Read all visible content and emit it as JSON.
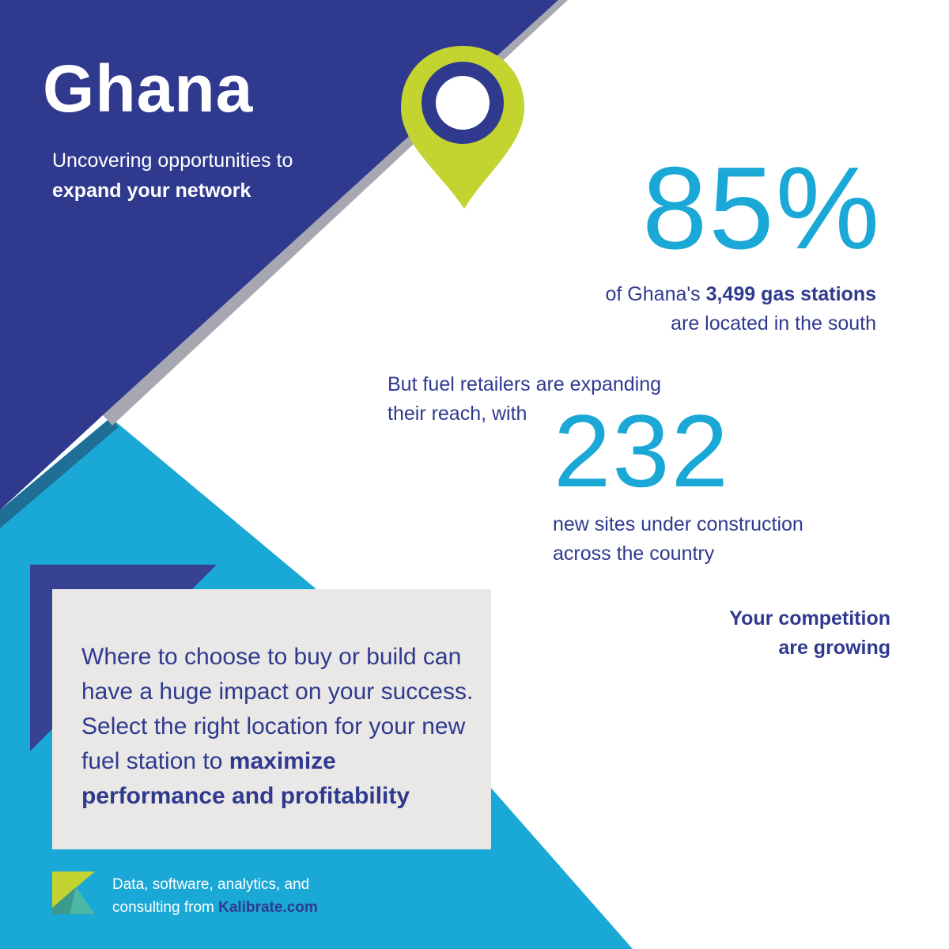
{
  "colors": {
    "navy": "#2f3a8f",
    "cyan": "#1aa8d6",
    "lime": "#c3d32f",
    "gray": "#a7a7b2",
    "card": "#e9e8e6"
  },
  "header": {
    "title": "Ghana",
    "subtitle_plain": "Uncovering opportunities to",
    "subtitle_bold": "expand your network"
  },
  "stat_south": {
    "value": "85%",
    "text_before": "of Ghana's",
    "text_bold": "3,499 gas stations",
    "text_after": "are located in the south"
  },
  "stat_new": {
    "intro_line1": "But fuel retailers are expanding",
    "intro_line2": "their reach, with",
    "value": "232",
    "text_line1": "new sites under construction",
    "text_line2": "across the country"
  },
  "competition": {
    "line1": "Your competition",
    "line2": "are growing"
  },
  "card": {
    "text_plain": "Where to choose to buy or build can have a huge impact on your success. Select the right location for your new fuel station to",
    "text_bold": "maximize performance and profitability"
  },
  "footer": {
    "line1": "Data, software, analytics, and",
    "line2_plain": "consulting from",
    "line2_bold": "Kalibrate.com"
  },
  "icons": {
    "pin": "location-pin-icon",
    "logo": "kalibrate-logo-icon"
  }
}
